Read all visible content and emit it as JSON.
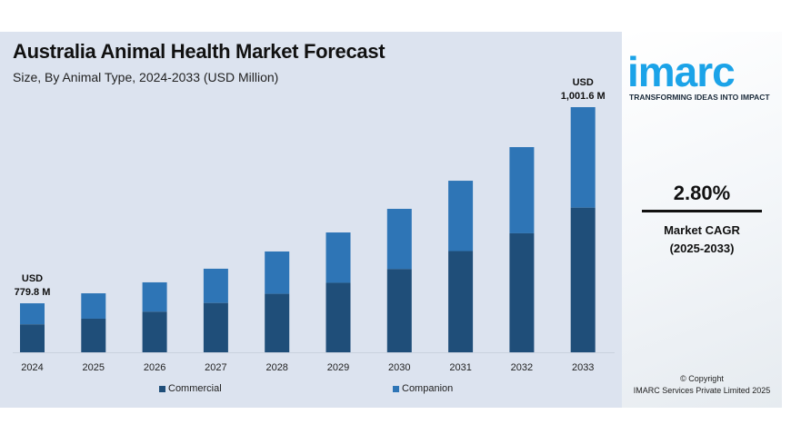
{
  "title": "Australia Animal Health Market Forecast",
  "subtitle": "Size, By Animal Type, 2024-2033 (USD Million)",
  "chart_data": {
    "type": "bar",
    "stacked": true,
    "categories": [
      "2024",
      "2025",
      "2026",
      "2027",
      "2028",
      "2029",
      "2030",
      "2031",
      "2032",
      "2033"
    ],
    "totals": [
      779.8,
      791.1,
      803.5,
      818.9,
      838.4,
      859.9,
      886.6,
      918.4,
      956.4,
      1001.6
    ],
    "commercial_share": [
      0.57,
      0.57,
      0.58,
      0.59,
      0.58,
      0.58,
      0.58,
      0.59,
      0.58,
      0.59
    ],
    "series": [
      {
        "name": "Commercial",
        "color": "#1f4e79"
      },
      {
        "name": "Companion",
        "color": "#2e75b6"
      }
    ],
    "annotations": [
      {
        "year": "2024",
        "line1": "USD",
        "line2": "779.8 M"
      },
      {
        "year": "2033",
        "line1": "USD",
        "line2": "1,001.6 M"
      }
    ],
    "legend": "bottom",
    "grid": false
  },
  "brand": {
    "logo": "imarc",
    "tagline": "TRANSFORMING IDEAS INTO IMPACT",
    "color": "#1ba3e8"
  },
  "cagr": {
    "value": "2.80%",
    "label": "Market CAGR",
    "period": "(2025-2033)"
  },
  "copyright": {
    "line1": "© Copyright",
    "line2": "IMARC Services Private Limited 2025"
  }
}
